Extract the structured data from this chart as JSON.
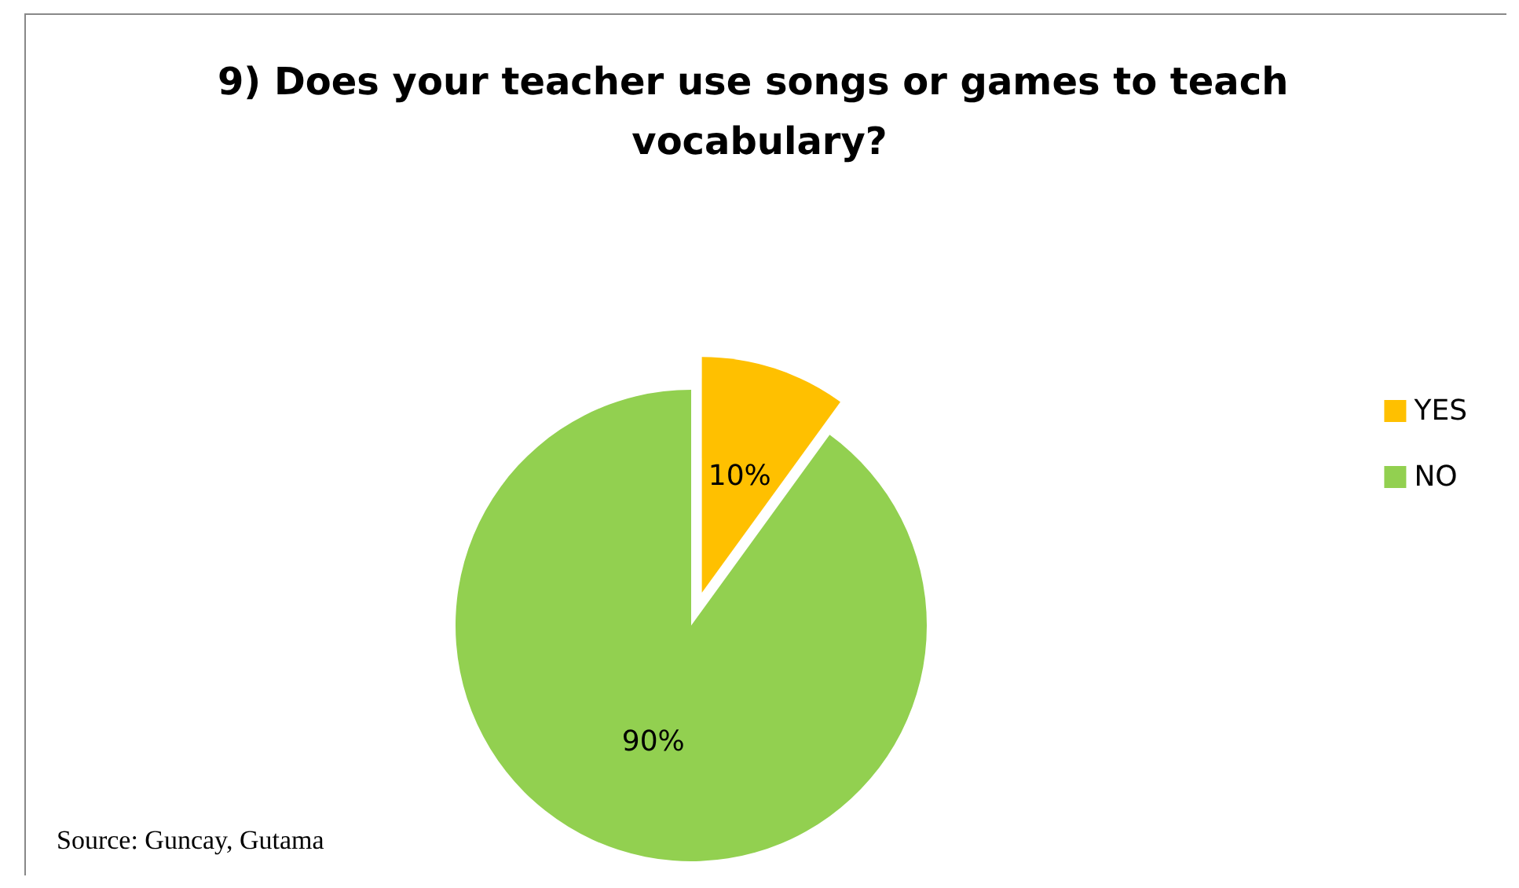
{
  "chart_data": {
    "type": "pie",
    "title": "9) Does your teacher use songs or games to teach vocabulary?",
    "categories": [
      "YES",
      "NO"
    ],
    "values": [
      10,
      90
    ],
    "value_labels": [
      "10%",
      "90%"
    ],
    "colors": [
      "#ffc000",
      "#92d050"
    ],
    "legend": "right",
    "annotations": [
      "Source: Guncay, Gutama"
    ]
  }
}
